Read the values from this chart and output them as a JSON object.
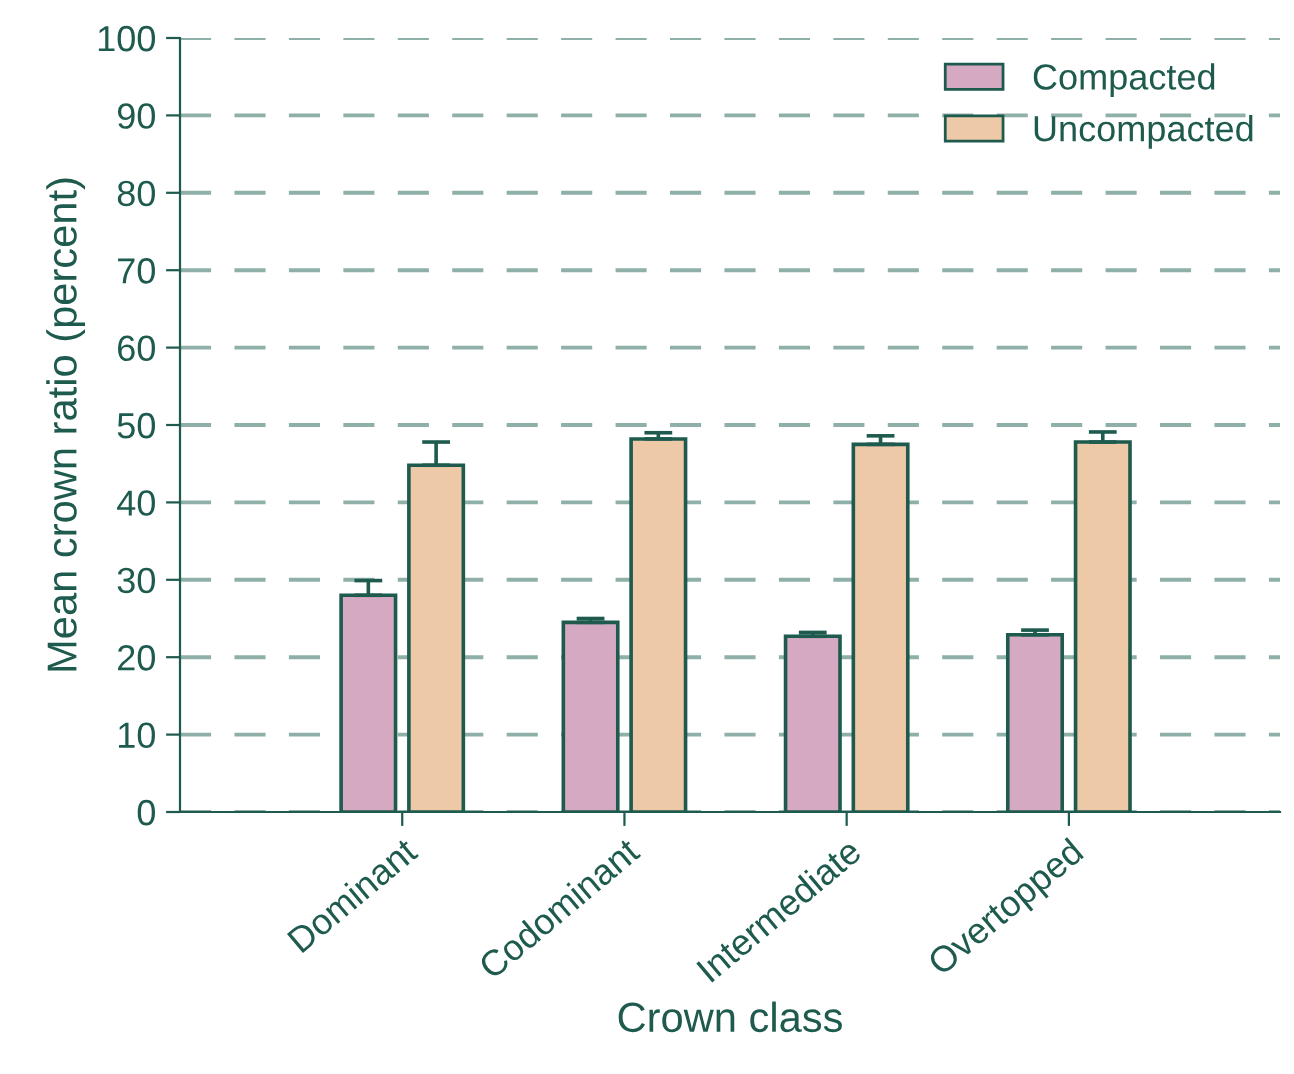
{
  "chart_data": {
    "type": "bar",
    "xlabel": "Crown class",
    "ylabel": "Mean crown ratio (percent)",
    "categories": [
      "Dominant",
      "Codominant",
      "Intermediate",
      "Overtopped"
    ],
    "series": [
      {
        "name": "Compacted",
        "color": "#d5a9c1",
        "values": [
          28.0,
          24.5,
          22.7,
          22.9
        ],
        "errors": [
          1.9,
          0.5,
          0.5,
          0.6
        ]
      },
      {
        "name": "Uncompacted",
        "color": "#edc9a8",
        "values": [
          44.8,
          48.2,
          47.5,
          47.8
        ],
        "errors": [
          3.0,
          0.8,
          1.1,
          1.3
        ]
      }
    ],
    "ylim": [
      0,
      100
    ],
    "yticks": [
      0,
      10,
      20,
      30,
      40,
      50,
      60,
      70,
      80,
      90,
      100
    ],
    "grid": "y",
    "legend": "top right"
  }
}
